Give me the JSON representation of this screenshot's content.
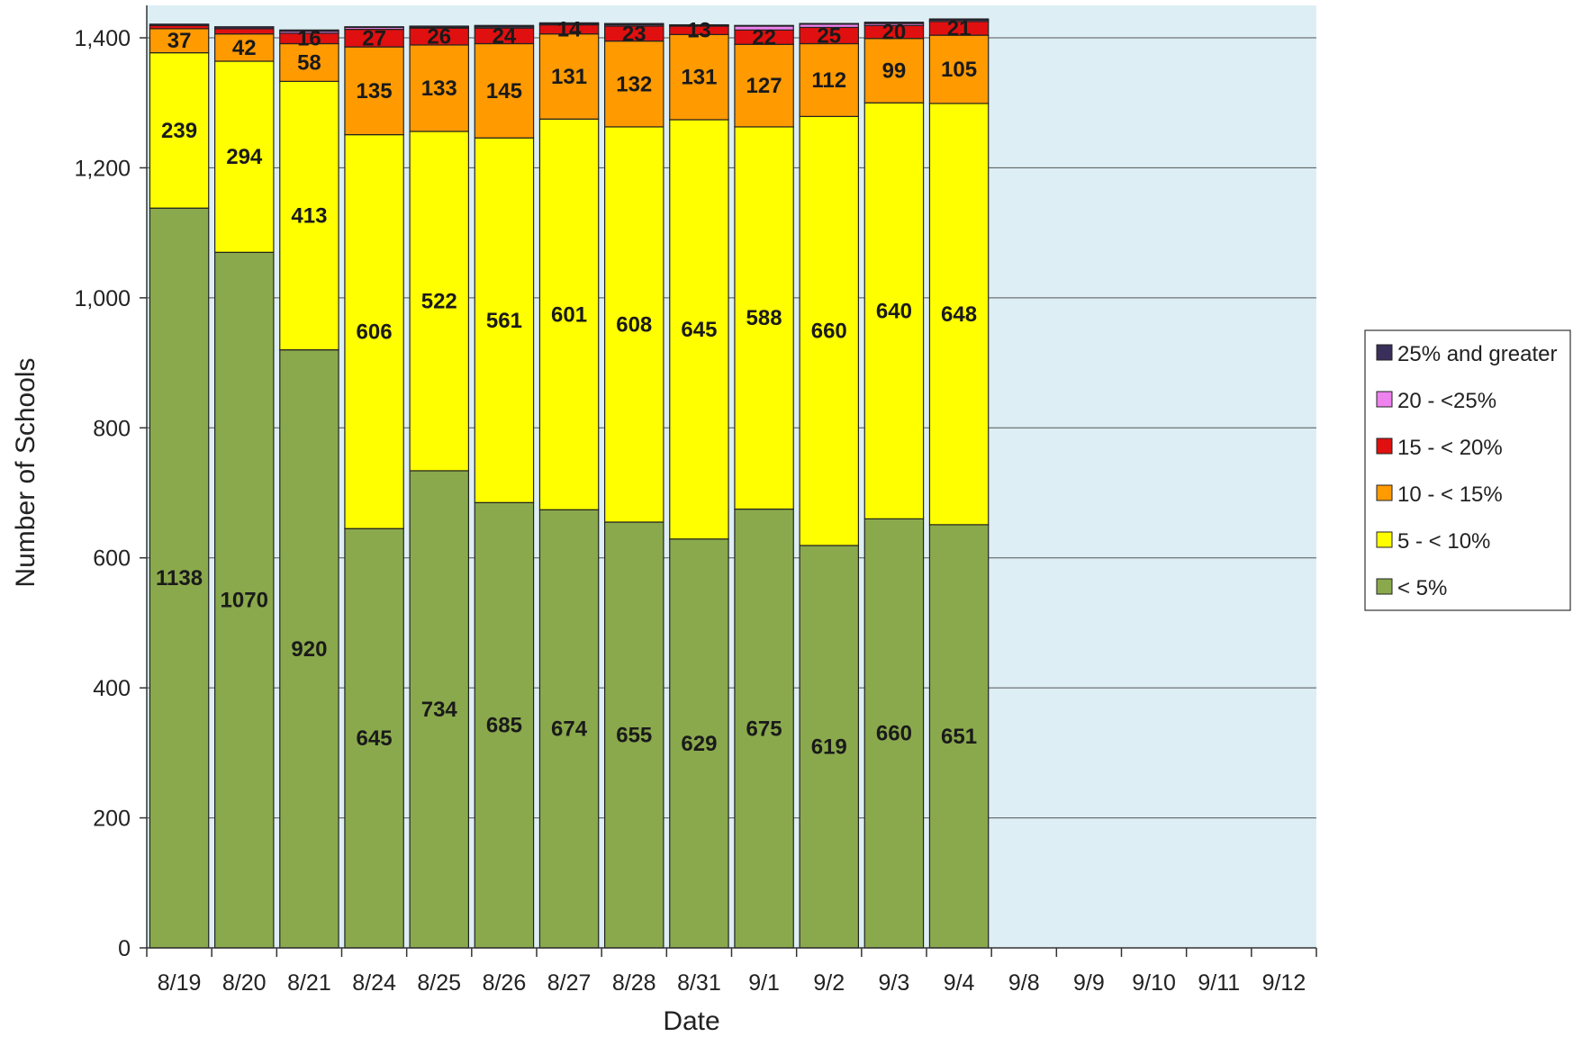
{
  "chart_data": {
    "type": "bar",
    "stacked": true,
    "xlabel": "Date",
    "ylabel": "Number of Schools",
    "ylim": [
      0,
      1400
    ],
    "yticks": [
      0,
      200,
      400,
      600,
      800,
      1000,
      1200,
      1400
    ],
    "ytick_labels": [
      "0",
      "200",
      "400",
      "600",
      "800",
      "1,000",
      "1,200",
      "1,400"
    ],
    "grid": true,
    "legend_position": "right",
    "categories": [
      "8/19",
      "8/20",
      "8/21",
      "8/24",
      "8/25",
      "8/26",
      "8/27",
      "8/28",
      "8/31",
      "9/1",
      "9/2",
      "9/3",
      "9/4",
      "9/8",
      "9/9",
      "9/10",
      "9/11",
      "9/12"
    ],
    "series": [
      {
        "name": "< 5%",
        "color": "#8aa94c",
        "values": [
          1138,
          1070,
          920,
          645,
          734,
          685,
          674,
          655,
          629,
          675,
          619,
          660,
          651,
          null,
          null,
          null,
          null,
          null
        ]
      },
      {
        "name": "5 - < 10%",
        "color": "#ffff00",
        "values": [
          239,
          294,
          413,
          606,
          522,
          561,
          601,
          608,
          645,
          588,
          660,
          640,
          648,
          null,
          null,
          null,
          null,
          null
        ]
      },
      {
        "name": "10 - < 15%",
        "color": "#ff9a00",
        "values": [
          37,
          42,
          58,
          135,
          133,
          145,
          131,
          132,
          131,
          127,
          112,
          99,
          105,
          null,
          null,
          null,
          null,
          null
        ]
      },
      {
        "name": "15 - < 20%",
        "color": "#e01010",
        "values": [
          5,
          8,
          16,
          27,
          26,
          24,
          14,
          23,
          13,
          22,
          25,
          20,
          21,
          null,
          null,
          null,
          null,
          null
        ]
      },
      {
        "name": "20 - <25%",
        "color": "#ee82ee",
        "values": [
          0,
          0,
          3,
          3,
          1,
          2,
          1,
          2,
          1,
          6,
          5,
          3,
          2,
          null,
          null,
          null,
          null,
          null
        ]
      },
      {
        "name": "25% and greater",
        "color": "#3a2f5a",
        "values": [
          2,
          3,
          2,
          1,
          2,
          2,
          2,
          2,
          1,
          1,
          1,
          2,
          2,
          null,
          null,
          null,
          null,
          null
        ]
      }
    ],
    "data_labels": [
      [
        "1138",
        "1070",
        "920",
        "645",
        "734",
        "685",
        "674",
        "655",
        "629",
        "675",
        "619",
        "660",
        "651"
      ],
      [
        "239",
        "294",
        "413",
        "606",
        "522",
        "561",
        "601",
        "608",
        "645",
        "588",
        "660",
        "640",
        "648"
      ],
      [
        "37",
        "42",
        "58",
        "135",
        "133",
        "145",
        "131",
        "132",
        "131",
        "127",
        "112",
        "99",
        "105"
      ],
      [
        "",
        "",
        "16",
        "27",
        "26",
        "24",
        "14",
        "23",
        "13",
        "22",
        "25",
        "20",
        "21"
      ]
    ],
    "legend_order": [
      "25% and greater",
      "20 - <25%",
      "15 - < 20%",
      "10 - < 15%",
      "5 - < 10%",
      "< 5%"
    ]
  }
}
